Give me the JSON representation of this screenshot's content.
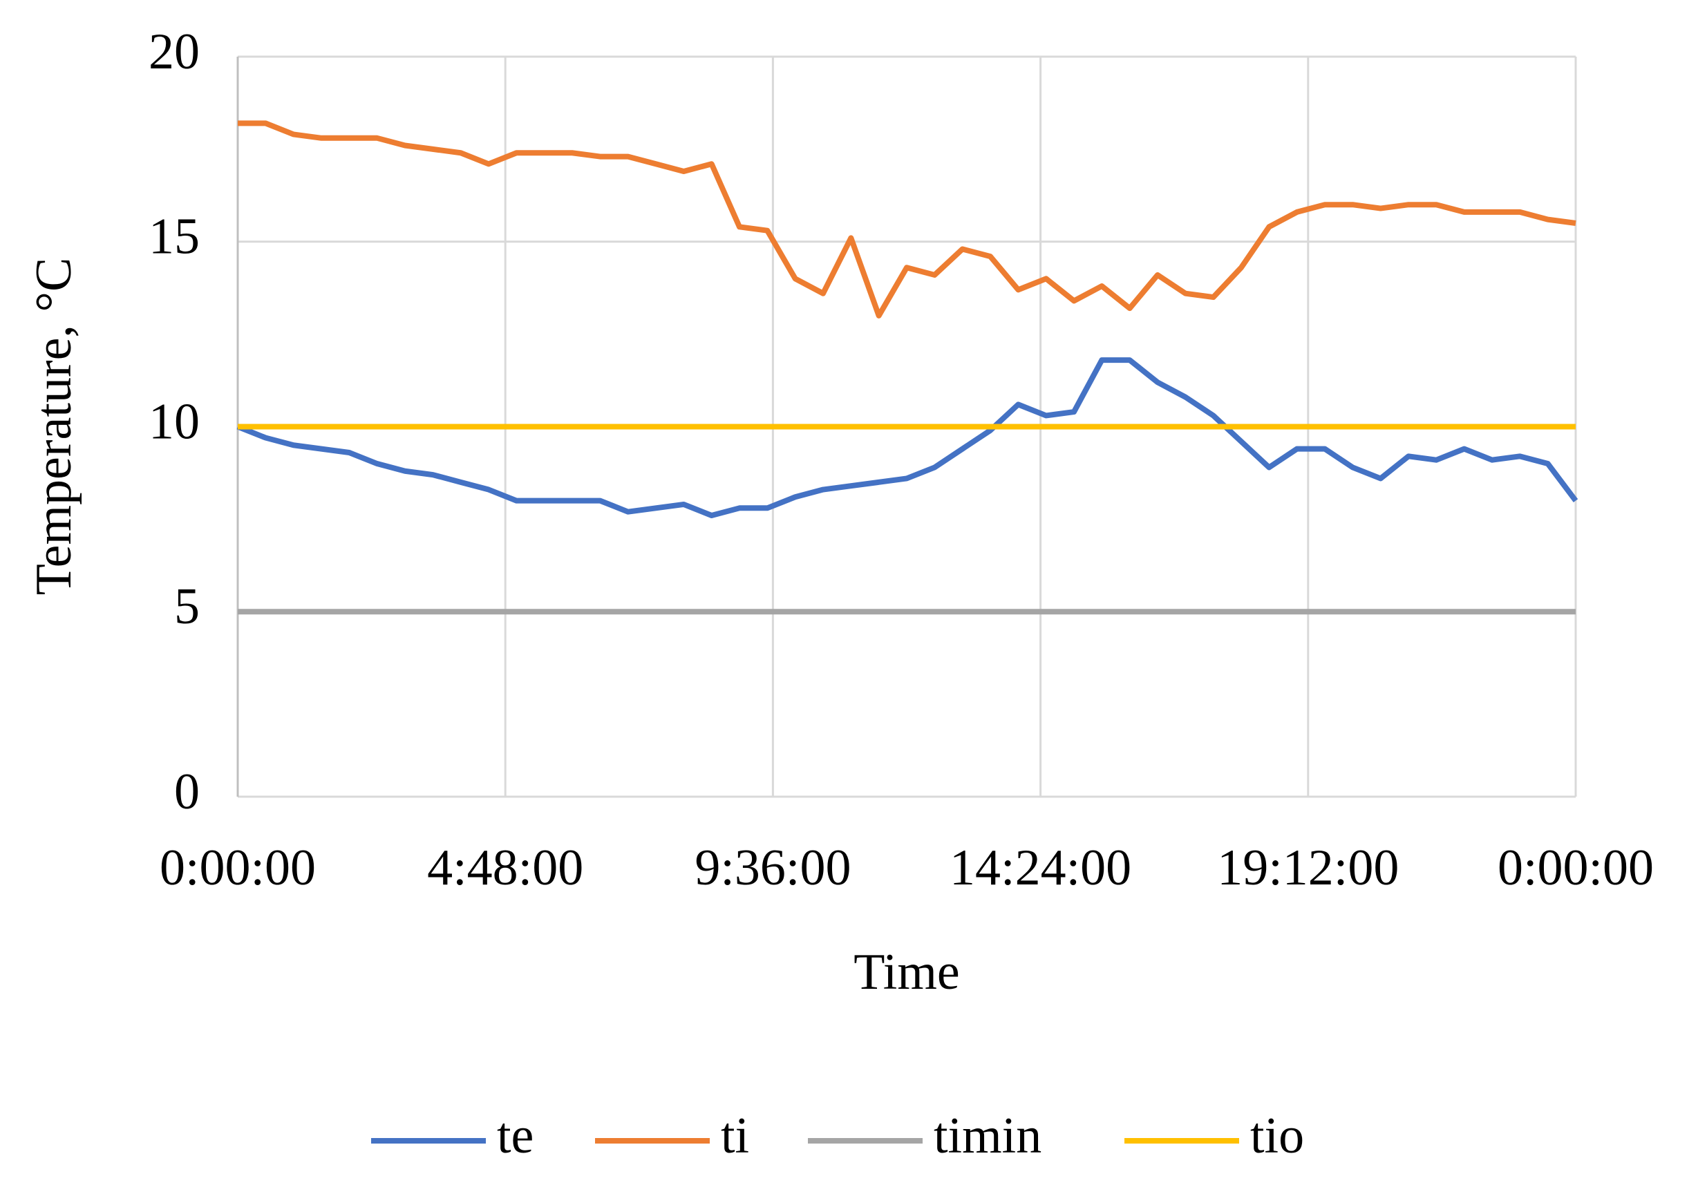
{
  "chart_data": {
    "type": "line",
    "y_label": "Temperature, °C",
    "x_label": "Time",
    "x": [
      0,
      0.5,
      1,
      1.5,
      2,
      2.5,
      3,
      3.5,
      4,
      4.5,
      5,
      5.5,
      6,
      6.5,
      7,
      7.5,
      8,
      8.5,
      9,
      9.5,
      10,
      10.5,
      11,
      11.5,
      12,
      12.5,
      13,
      13.5,
      14,
      14.5,
      15,
      15.5,
      16,
      16.5,
      17,
      17.5,
      18,
      18.5,
      19,
      19.5,
      20,
      20.5,
      21,
      21.5,
      22,
      22.5,
      23,
      23.5,
      24
    ],
    "series": [
      {
        "name": "te",
        "color": "#4472c4",
        "values": [
          10.0,
          9.7,
          9.5,
          9.4,
          9.3,
          9.0,
          8.8,
          8.7,
          8.5,
          8.3,
          8.0,
          8.0,
          8.0,
          8.0,
          7.7,
          7.8,
          7.9,
          7.6,
          7.8,
          7.8,
          8.1,
          8.3,
          8.4,
          8.5,
          8.6,
          8.9,
          9.4,
          9.9,
          10.6,
          10.3,
          10.4,
          11.8,
          11.8,
          11.2,
          10.8,
          10.3,
          9.6,
          8.9,
          9.4,
          9.4,
          8.9,
          8.6,
          9.2,
          9.1,
          9.4,
          9.1,
          9.2,
          9.0,
          8.0
        ]
      },
      {
        "name": "ti",
        "color": "#ed7d31",
        "values": [
          18.2,
          18.2,
          17.9,
          17.8,
          17.8,
          17.8,
          17.6,
          17.5,
          17.4,
          17.1,
          17.4,
          17.4,
          17.4,
          17.3,
          17.3,
          17.1,
          16.9,
          17.1,
          15.4,
          15.3,
          14.0,
          13.6,
          15.1,
          13.0,
          14.3,
          14.1,
          14.8,
          14.6,
          13.7,
          14.0,
          13.4,
          13.8,
          13.2,
          14.1,
          13.6,
          13.5,
          14.3,
          15.4,
          15.8,
          16.0,
          16.0,
          15.9,
          16.0,
          16.0,
          15.8,
          15.8,
          15.8,
          15.6,
          15.5
        ]
      },
      {
        "name": "timin",
        "color": "#a5a5a5",
        "values": [
          5,
          5,
          5,
          5,
          5,
          5,
          5,
          5,
          5,
          5,
          5,
          5,
          5,
          5,
          5,
          5,
          5,
          5,
          5,
          5,
          5,
          5,
          5,
          5,
          5,
          5,
          5,
          5,
          5,
          5,
          5,
          5,
          5,
          5,
          5,
          5,
          5,
          5,
          5,
          5,
          5,
          5,
          5,
          5,
          5,
          5,
          5,
          5,
          5
        ]
      },
      {
        "name": "tio",
        "color": "#ffc000",
        "values": [
          10,
          10,
          10,
          10,
          10,
          10,
          10,
          10,
          10,
          10,
          10,
          10,
          10,
          10,
          10,
          10,
          10,
          10,
          10,
          10,
          10,
          10,
          10,
          10,
          10,
          10,
          10,
          10,
          10,
          10,
          10,
          10,
          10,
          10,
          10,
          10,
          10,
          10,
          10,
          10,
          10,
          10,
          10,
          10,
          10,
          10,
          10,
          10,
          10
        ]
      }
    ],
    "xlim": [
      0,
      24
    ],
    "xticks": [
      {
        "value": 0,
        "label": "0:00:00"
      },
      {
        "value": 4.8,
        "label": "4:48:00"
      },
      {
        "value": 9.6,
        "label": "9:36:00"
      },
      {
        "value": 14.4,
        "label": "14:24:00"
      },
      {
        "value": 19.2,
        "label": "19:12:00"
      },
      {
        "value": 24,
        "label": "0:00:00"
      }
    ],
    "ylim": [
      0,
      20
    ],
    "yticks": [
      0,
      5,
      10,
      15,
      20
    ],
    "grid": true,
    "legend": "bottom"
  }
}
